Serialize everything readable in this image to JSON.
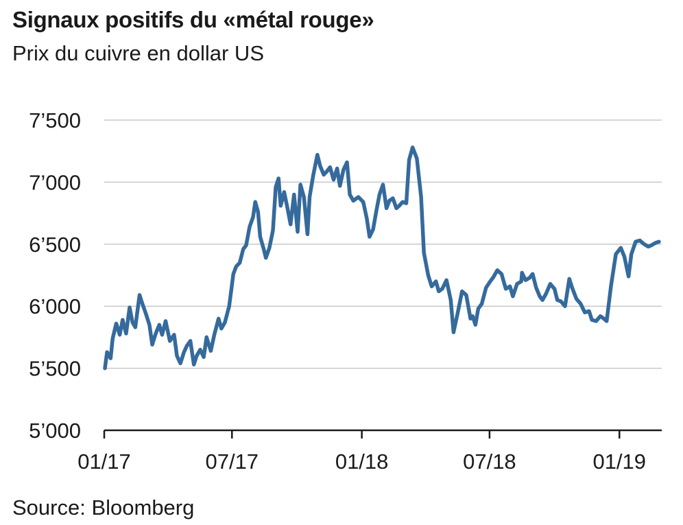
{
  "header": {
    "title": "Signaux positifs du «métal rouge»",
    "subtitle": "Prix du cuivre en dollar US"
  },
  "footer": {
    "source": "Source: Bloomberg"
  },
  "colors": {
    "line": "#356a9c",
    "grid": "#c8c8c8",
    "axis": "#1a1a1a"
  },
  "chart_data": {
    "type": "line",
    "title": "Signaux positifs du «métal rouge»",
    "subtitle": "Prix du cuivre en dollar US",
    "ylim": [
      5000,
      7500
    ],
    "y_ticks": [
      5000,
      5500,
      6000,
      6500,
      7000,
      7500
    ],
    "y_tick_labels": [
      "5’000",
      "5’500",
      "6’000",
      "6’500",
      "7’000",
      "7’500"
    ],
    "x_ticks": [
      "2017-01",
      "2017-07",
      "2018-01",
      "2018-07",
      "2019-01"
    ],
    "x_tick_labels": [
      "01/17",
      "07/17",
      "01/18",
      "07/18",
      "01/19"
    ],
    "grid": "horizontal",
    "series": [
      {
        "x": [
          "2017-01-02",
          "2017-01-05",
          "2017-01-10",
          "2017-01-13",
          "2017-01-18",
          "2017-01-23",
          "2017-01-27",
          "2017-02-01",
          "2017-02-06",
          "2017-02-10",
          "2017-02-14",
          "2017-02-20",
          "2017-02-24",
          "2017-03-01",
          "2017-03-06",
          "2017-03-10",
          "2017-03-15",
          "2017-03-20",
          "2017-03-24",
          "2017-03-29",
          "2017-04-04",
          "2017-04-10",
          "2017-04-14",
          "2017-04-19",
          "2017-04-24",
          "2017-04-28",
          "2017-05-03",
          "2017-05-08",
          "2017-05-12",
          "2017-05-17",
          "2017-05-22",
          "2017-05-26",
          "2017-06-01",
          "2017-06-06",
          "2017-06-12",
          "2017-06-16",
          "2017-06-21",
          "2017-06-27",
          "2017-07-03",
          "2017-07-07",
          "2017-07-12",
          "2017-07-17",
          "2017-07-21",
          "2017-07-26",
          "2017-07-31",
          "2017-08-03",
          "2017-08-07",
          "2017-08-10",
          "2017-08-15",
          "2017-08-18",
          "2017-08-23",
          "2017-08-28",
          "2017-09-01",
          "2017-09-05",
          "2017-09-08",
          "2017-09-13",
          "2017-09-18",
          "2017-09-22",
          "2017-09-27",
          "2017-10-02",
          "2017-10-06",
          "2017-10-11",
          "2017-10-16",
          "2017-10-19",
          "2017-10-24",
          "2017-10-30",
          "2017-11-03",
          "2017-11-08",
          "2017-11-13",
          "2017-11-17",
          "2017-11-22",
          "2017-11-27",
          "2017-12-01",
          "2017-12-06",
          "2017-12-11",
          "2017-12-15",
          "2017-12-20",
          "2017-12-27",
          "2018-01-03",
          "2018-01-08",
          "2018-01-12",
          "2018-01-17",
          "2018-01-22",
          "2018-01-26",
          "2018-01-31",
          "2018-02-05",
          "2018-02-09",
          "2018-02-14",
          "2018-02-19",
          "2018-02-23",
          "2018-02-28",
          "2018-03-05",
          "2018-03-09",
          "2018-03-14",
          "2018-03-20",
          "2018-03-26",
          "2018-03-30",
          "2018-04-05",
          "2018-04-10",
          "2018-04-16",
          "2018-04-20",
          "2018-04-25",
          "2018-05-01",
          "2018-05-07",
          "2018-05-11",
          "2018-05-17",
          "2018-05-23",
          "2018-05-29",
          "2018-06-04",
          "2018-06-07",
          "2018-06-11",
          "2018-06-15",
          "2018-06-20",
          "2018-06-26",
          "2018-07-02",
          "2018-07-06",
          "2018-07-12",
          "2018-07-18",
          "2018-07-24",
          "2018-07-30",
          "2018-08-03",
          "2018-08-09",
          "2018-08-15",
          "2018-08-16",
          "2018-08-21",
          "2018-08-27",
          "2018-08-31",
          "2018-09-05",
          "2018-09-10",
          "2018-09-14",
          "2018-09-19",
          "2018-09-25",
          "2018-10-01",
          "2018-10-05",
          "2018-10-10",
          "2018-10-16",
          "2018-10-22",
          "2018-10-26",
          "2018-11-01",
          "2018-11-07",
          "2018-11-13",
          "2018-11-19",
          "2018-11-23",
          "2018-11-29",
          "2018-12-05",
          "2018-12-10",
          "2018-12-14",
          "2018-12-20",
          "2018-12-27",
          "2019-01-03",
          "2019-01-08",
          "2019-01-14",
          "2019-01-18",
          "2019-01-24",
          "2019-01-30",
          "2019-02-05",
          "2019-02-11",
          "2019-02-15",
          "2019-02-21",
          "2019-02-26"
        ],
        "values": [
          5500,
          5630,
          5580,
          5740,
          5860,
          5770,
          5890,
          5780,
          5990,
          5870,
          5830,
          6090,
          6020,
          5940,
          5850,
          5690,
          5780,
          5850,
          5770,
          5880,
          5720,
          5770,
          5600,
          5540,
          5630,
          5680,
          5720,
          5530,
          5600,
          5650,
          5590,
          5750,
          5640,
          5770,
          5900,
          5820,
          5870,
          6000,
          6260,
          6320,
          6350,
          6460,
          6490,
          6640,
          6720,
          6840,
          6760,
          6560,
          6460,
          6390,
          6470,
          6610,
          6960,
          7030,
          6810,
          6920,
          6780,
          6660,
          6900,
          6600,
          6980,
          6880,
          6580,
          6880,
          7050,
          7220,
          7130,
          7060,
          7090,
          7120,
          7020,
          7110,
          6970,
          7100,
          7160,
          6900,
          6850,
          6880,
          6840,
          6710,
          6560,
          6620,
          6780,
          6900,
          6980,
          6790,
          6850,
          6870,
          6790,
          6810,
          6840,
          6830,
          7180,
          7280,
          7190,
          6880,
          6430,
          6250,
          6160,
          6200,
          6120,
          6140,
          6210,
          6050,
          5790,
          5950,
          6120,
          6090,
          5900,
          5920,
          5850,
          5980,
          6020,
          6150,
          6200,
          6230,
          6290,
          6260,
          6140,
          6160,
          6080,
          6180,
          6200,
          6270,
          6210,
          6230,
          6260,
          6150,
          6080,
          6050,
          6100,
          6180,
          6140,
          6050,
          6040,
          6000,
          6220,
          6150,
          6060,
          6020,
          5950,
          5960,
          5890,
          5880,
          5920,
          5900,
          5880,
          6160,
          6420,
          6470,
          6400,
          6240,
          6420,
          6520,
          6530,
          6500,
          6480,
          6490,
          6510,
          6520
        ]
      }
    ]
  }
}
